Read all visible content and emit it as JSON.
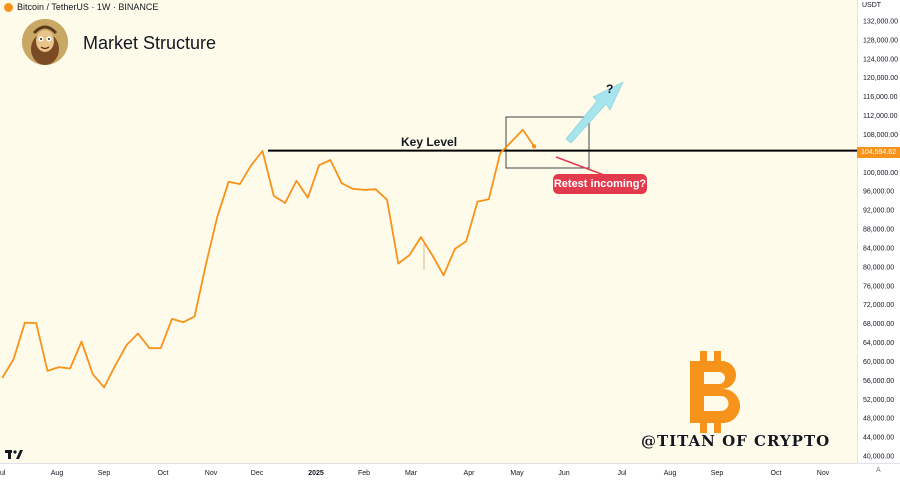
{
  "header": {
    "symbol": "Bitcoin / TetherUS · 1W · BINANCE"
  },
  "title": "Market Structure",
  "currency": "USDT",
  "current_price_tag": "104,594.62",
  "auto_label": "A",
  "colors": {
    "background": "#fffbeb",
    "series": "#f7931a",
    "key_level": "#000000",
    "callout": "#e33b4e",
    "arrow": "#a8e4ee"
  },
  "annotations": {
    "key_level_label": "Key Level",
    "callout_text": "Retest incoming?",
    "question": "?",
    "watermark": "@TITAN OF CRYPTO"
  },
  "icons": {
    "avatar": "avatar-portrait",
    "symbol": "bitcoin-coin-icon",
    "logo": "bitcoin-logo",
    "platform": "tradingview-logo"
  },
  "chart_data": {
    "type": "line",
    "title": "Market Structure",
    "ylim": [
      40000,
      132000
    ],
    "grid": false,
    "y_ticks": [
      "132,000.00",
      "128,000.00",
      "124,000.00",
      "120,000.00",
      "116,000.00",
      "112,000.00",
      "108,000.00",
      "104,000.00",
      "100,000.00",
      "96,000.00",
      "92,000.00",
      "88,000.00",
      "84,000.00",
      "80,000.00",
      "76,000.00",
      "72,000.00",
      "68,000.00",
      "64,000.00",
      "60,000.00",
      "56,000.00",
      "52,000.00",
      "48,000.00",
      "44,000.00",
      "40,000.00"
    ],
    "x_ticks": [
      "Jul",
      "Aug",
      "Sep",
      "Oct",
      "Nov",
      "Dec",
      "2025",
      "Feb",
      "Mar",
      "Apr",
      "May",
      "Jun",
      "Jul",
      "Aug",
      "Sep",
      "Oct",
      "Nov"
    ],
    "key_level": 104594.62,
    "series": [
      {
        "x": [
          "2024-07-01",
          "2024-07-08",
          "2024-07-15",
          "2024-07-22",
          "2024-07-29",
          "2024-08-05",
          "2024-08-12",
          "2024-08-19",
          "2024-08-26",
          "2024-09-02",
          "2024-09-09",
          "2024-09-16",
          "2024-09-23",
          "2024-09-30",
          "2024-10-07",
          "2024-10-14",
          "2024-10-21",
          "2024-10-28",
          "2024-11-04",
          "2024-11-11",
          "2024-11-18",
          "2024-11-25",
          "2024-12-02",
          "2024-12-09",
          "2024-12-16",
          "2024-12-23",
          "2024-12-30",
          "2025-01-06",
          "2025-01-13",
          "2025-01-20",
          "2025-01-27",
          "2025-02-03",
          "2025-02-10",
          "2025-02-17",
          "2025-02-24",
          "2025-03-03",
          "2025-03-10",
          "2025-03-17",
          "2025-03-24",
          "2025-03-31",
          "2025-04-07",
          "2025-04-14",
          "2025-04-21",
          "2025-04-28",
          "2025-05-05",
          "2025-05-12",
          "2025-05-19",
          "2025-05-26"
        ],
        "values": [
          56500,
          60500,
          68200,
          68100,
          58000,
          58800,
          58500,
          64200,
          57300,
          54500,
          59200,
          63500,
          65900,
          62800,
          62800,
          69000,
          68300,
          69500,
          80500,
          90500,
          98000,
          97500,
          101500,
          104500,
          95000,
          93500,
          98200,
          94600,
          101500,
          102600,
          97700,
          96500,
          96300,
          96400,
          94200,
          80700,
          82500,
          86300,
          82500,
          78200,
          83800,
          85400,
          93800,
          94300,
          104000,
          106500,
          109000,
          105500
        ]
      }
    ]
  }
}
